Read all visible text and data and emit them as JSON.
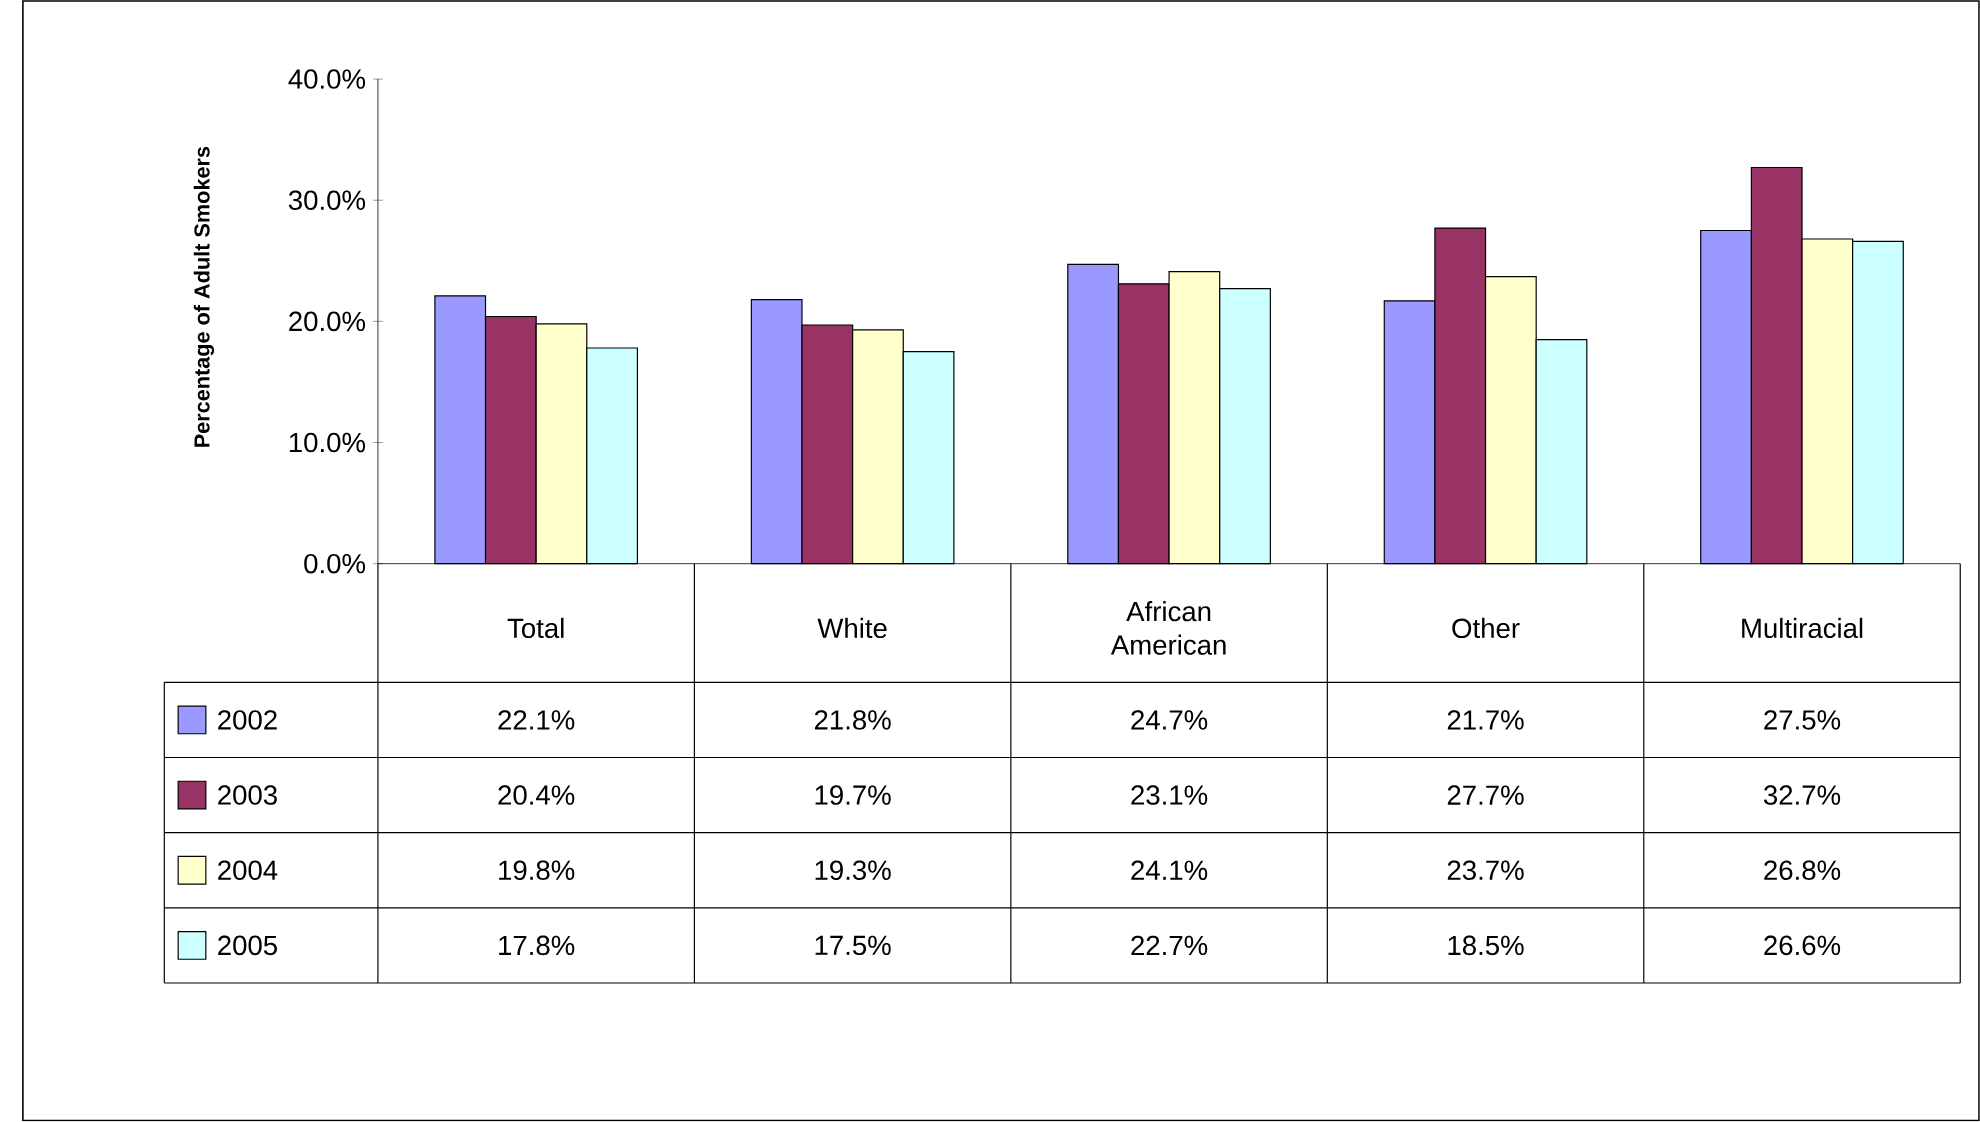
{
  "chart_data": {
    "type": "bar",
    "ylabel": "Percentage of Adult Smokers",
    "categories": [
      "Total",
      "White",
      "African American",
      "Other",
      "Multiracial"
    ],
    "series": [
      {
        "name": "2002",
        "color": "#9999ff",
        "values": [
          22.1,
          21.8,
          24.7,
          21.7,
          27.5
        ],
        "value_labels": [
          "22.1%",
          "21.8%",
          "24.7%",
          "21.7%",
          "27.5%"
        ]
      },
      {
        "name": "2003",
        "color": "#993366",
        "values": [
          20.4,
          19.7,
          23.1,
          27.7,
          32.7
        ],
        "value_labels": [
          "20.4%",
          "19.7%",
          "23.1%",
          "27.7%",
          "32.7%"
        ]
      },
      {
        "name": "2004",
        "color": "#ffffcc",
        "values": [
          19.8,
          19.3,
          24.1,
          23.7,
          26.8
        ],
        "value_labels": [
          "19.8%",
          "19.3%",
          "24.1%",
          "23.7%",
          "26.8%"
        ]
      },
      {
        "name": "2005",
        "color": "#ccffff",
        "values": [
          17.8,
          17.5,
          22.7,
          18.5,
          26.6
        ],
        "value_labels": [
          "17.8%",
          "17.5%",
          "22.7%",
          "18.5%",
          "26.6%"
        ]
      }
    ],
    "ylim": [
      0,
      40
    ],
    "yticks": [
      {
        "value": 0,
        "label": "0.0%"
      },
      {
        "value": 10,
        "label": "10.0%"
      },
      {
        "value": 20,
        "label": "20.0%"
      },
      {
        "value": 30,
        "label": "30.0%"
      },
      {
        "value": 40,
        "label": "40.0%"
      }
    ],
    "legend": "bottom left"
  }
}
